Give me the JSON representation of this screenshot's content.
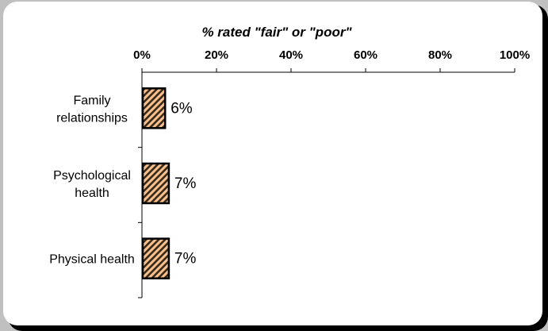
{
  "chart_data": {
    "type": "bar",
    "orientation": "horizontal",
    "title": "% rated \"fair\" or \"poor\"",
    "categories": [
      [
        "Family",
        "relationships"
      ],
      [
        "Psychological",
        "health"
      ],
      [
        "Physical health"
      ]
    ],
    "values": [
      6,
      7,
      7
    ],
    "value_labels": [
      "6%",
      "7%",
      "7%"
    ],
    "xlim": [
      0,
      100
    ],
    "x_ticks": [
      0,
      20,
      40,
      60,
      80,
      100
    ],
    "x_tick_labels": [
      "0%",
      "20%",
      "40%",
      "60%",
      "80%",
      "100%"
    ],
    "x_axis_position": "top",
    "grid": false,
    "legend": "none",
    "colors": {
      "bar_fill": "#f9c08f",
      "bar_hatch": "#3a2a1a",
      "bar_border": "#000000",
      "background": "#ffffff"
    }
  }
}
